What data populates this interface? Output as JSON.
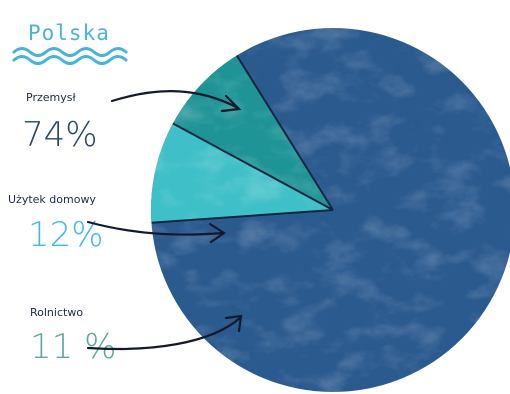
{
  "chart_data": {
    "type": "pie",
    "title": "Polska",
    "slices": [
      {
        "label": "Przemysł",
        "value": 74,
        "value_label": "74%",
        "color": "#2b5a8f",
        "label_color": "#26456f"
      },
      {
        "label": "Użytek domowy",
        "value": 12,
        "value_label": "12%",
        "color": "#3fc0c8",
        "label_color": "#3fb9ea"
      },
      {
        "label": "Rolnictwo",
        "value": 11,
        "value_label": "11 %",
        "color": "#1f9497",
        "label_color": "#5ba99c"
      }
    ],
    "legend": "left"
  }
}
